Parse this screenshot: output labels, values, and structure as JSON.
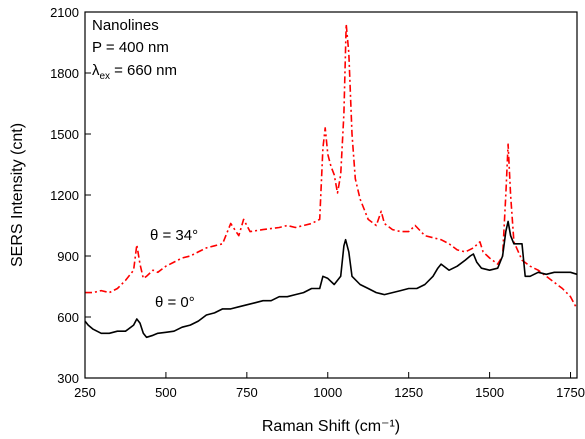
{
  "chart_data": {
    "type": "line",
    "x_label": "Raman Shift (cm⁻¹)",
    "y_label": "SERS Intensity (cnt)",
    "annotations": [
      "Nanolines",
      "P = 400 nm"
    ],
    "excitation": {
      "symbol": "λ",
      "subscript": "ex",
      "text": "= 660 nm"
    },
    "xlim": [
      250,
      1770
    ],
    "ylim": [
      300,
      2100
    ],
    "xticks": [
      250,
      500,
      750,
      1000,
      1250,
      1500,
      1750
    ],
    "yticks": [
      300,
      600,
      900,
      1200,
      1500,
      1800,
      2100
    ],
    "series": [
      {
        "name": "θ = 34°",
        "color": "#ff0000",
        "dash": "dash-dot",
        "x": [
          250,
          275,
          300,
          325,
          350,
          375,
          400,
          410,
          420,
          430,
          440,
          460,
          475,
          500,
          525,
          550,
          575,
          600,
          625,
          650,
          675,
          700,
          725,
          740,
          760,
          800,
          850,
          875,
          900,
          925,
          950,
          975,
          985,
          992,
          1000,
          1010,
          1020,
          1030,
          1040,
          1050,
          1057,
          1065,
          1075,
          1085,
          1100,
          1125,
          1150,
          1165,
          1175,
          1200,
          1225,
          1250,
          1270,
          1300,
          1325,
          1350,
          1375,
          1400,
          1425,
          1450,
          1470,
          1480,
          1500,
          1525,
          1540,
          1550,
          1557,
          1565,
          1575,
          1600,
          1625,
          1650,
          1675,
          1700,
          1725,
          1750,
          1770
        ],
        "values": [
          720,
          720,
          730,
          720,
          740,
          780,
          830,
          955,
          860,
          790,
          800,
          830,
          820,
          850,
          870,
          890,
          900,
          920,
          940,
          950,
          960,
          1060,
          1000,
          1080,
          1020,
          1030,
          1040,
          1050,
          1040,
          1050,
          1060,
          1080,
          1430,
          1530,
          1400,
          1340,
          1300,
          1210,
          1300,
          1600,
          2040,
          1900,
          1500,
          1280,
          1180,
          1080,
          1050,
          1120,
          1060,
          1030,
          1020,
          1020,
          1050,
          1000,
          990,
          980,
          960,
          930,
          920,
          940,
          970,
          920,
          890,
          860,
          900,
          1200,
          1450,
          1200,
          970,
          880,
          850,
          830,
          800,
          770,
          740,
          700,
          640
        ]
      },
      {
        "name": "θ = 0°",
        "color": "#000000",
        "dash": "solid",
        "x": [
          250,
          260,
          275,
          300,
          325,
          350,
          375,
          400,
          410,
          420,
          430,
          440,
          460,
          475,
          500,
          525,
          550,
          575,
          600,
          625,
          650,
          675,
          700,
          725,
          750,
          775,
          800,
          825,
          850,
          875,
          900,
          925,
          950,
          975,
          985,
          1000,
          1020,
          1040,
          1050,
          1055,
          1065,
          1075,
          1100,
          1125,
          1150,
          1175,
          1200,
          1225,
          1250,
          1275,
          1300,
          1325,
          1340,
          1350,
          1375,
          1400,
          1425,
          1440,
          1450,
          1460,
          1475,
          1500,
          1525,
          1540,
          1550,
          1557,
          1565,
          1575,
          1600,
          1610,
          1625,
          1650,
          1675,
          1700,
          1725,
          1750,
          1770
        ],
        "values": [
          580,
          560,
          540,
          520,
          520,
          530,
          530,
          560,
          590,
          570,
          520,
          500,
          510,
          520,
          525,
          530,
          550,
          560,
          580,
          610,
          620,
          640,
          640,
          650,
          660,
          670,
          680,
          680,
          700,
          700,
          710,
          720,
          740,
          740,
          800,
          790,
          760,
          800,
          950,
          980,
          920,
          800,
          760,
          740,
          720,
          710,
          720,
          730,
          740,
          740,
          760,
          800,
          840,
          860,
          830,
          850,
          880,
          900,
          910,
          870,
          840,
          830,
          840,
          900,
          1020,
          1070,
          1000,
          960,
          960,
          800,
          800,
          820,
          810,
          820,
          820,
          820,
          810
        ]
      }
    ]
  }
}
